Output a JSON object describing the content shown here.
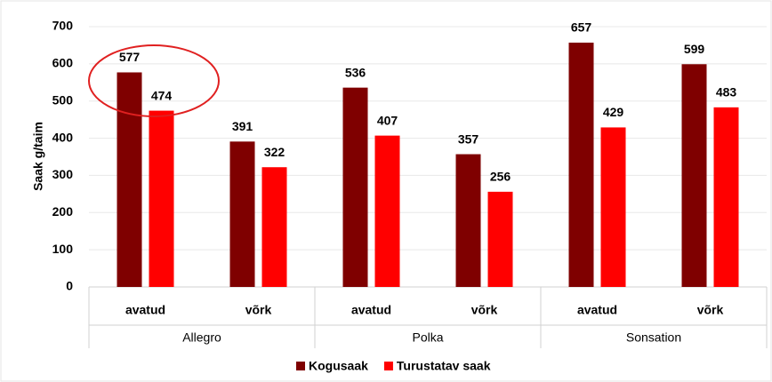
{
  "chart_data": {
    "type": "bar",
    "categories": [
      "avatud",
      "võrk",
      "avatud",
      "võrk",
      "avatud",
      "võrk"
    ],
    "category_groups": [
      "Allegro",
      "Polka",
      "Sonsation"
    ],
    "y_label": "Saak g/taim",
    "series": [
      {
        "name": "Kogusaak",
        "color": "#7f0000",
        "values": [
          577,
          391,
          536,
          357,
          657,
          599
        ]
      },
      {
        "name": "Turustatav saak",
        "color": "#ff0000",
        "values": [
          474,
          322,
          407,
          256,
          429,
          483
        ]
      }
    ],
    "ylim": [
      0,
      700
    ],
    "yticks": [
      0,
      100,
      200,
      300,
      400,
      500,
      600,
      700
    ],
    "grid": true
  }
}
